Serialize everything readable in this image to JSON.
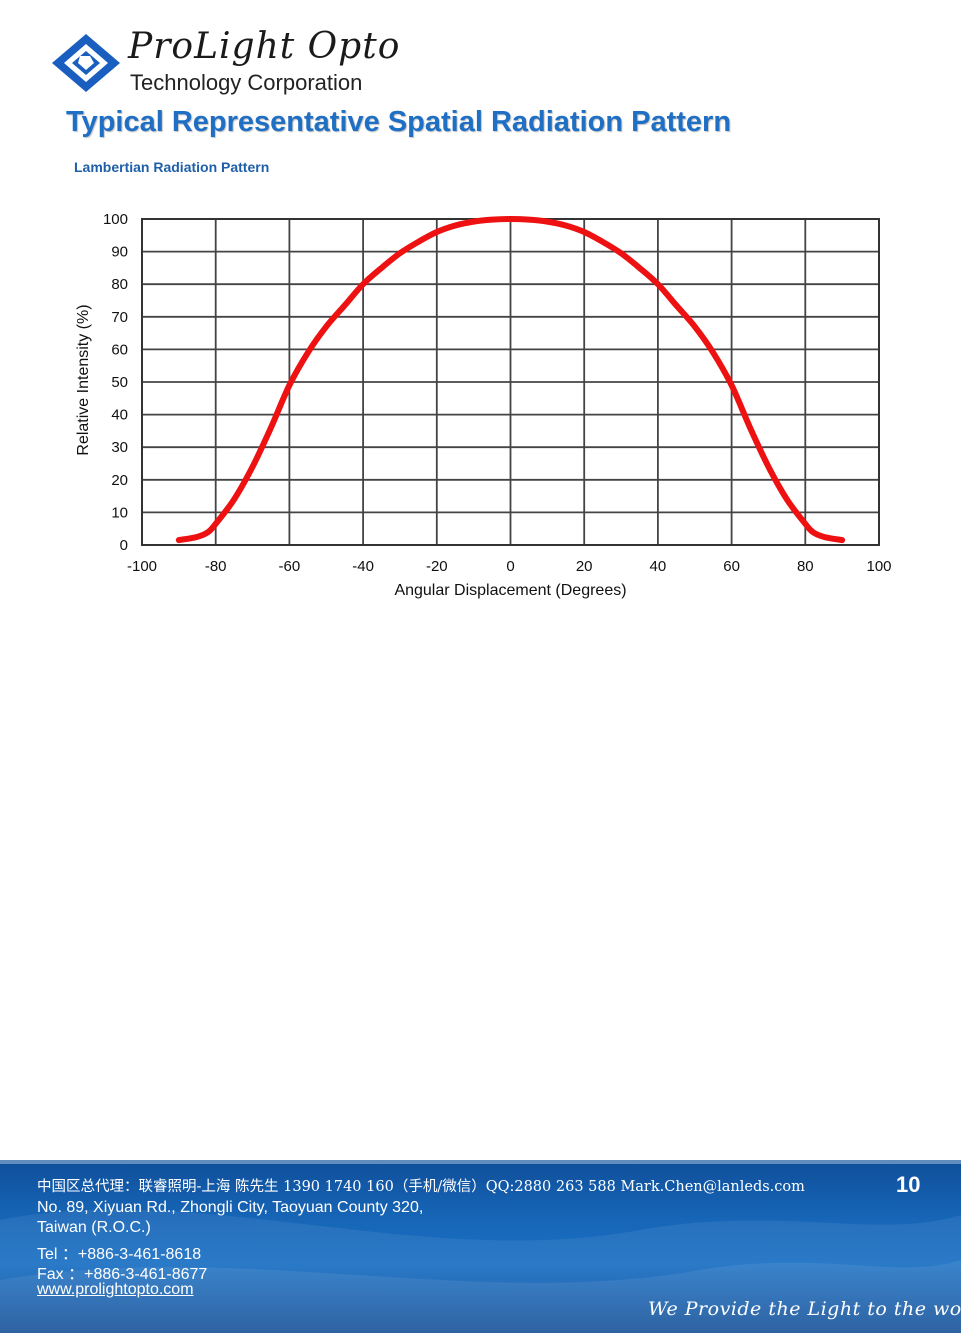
{
  "header": {
    "brand": "ProLight Opto",
    "subtitle": "Technology Corporation",
    "logo_icon": "diamond-logo-icon"
  },
  "page_title": "Typical Representative Spatial Radiation Pattern",
  "chart_heading": "Lambertian Radiation Pattern",
  "chart_data": {
    "type": "line",
    "title": "",
    "xlabel": "Angular Displacement (Degrees)",
    "ylabel": "Relative Intensity (%)",
    "xlim": [
      -100,
      100
    ],
    "ylim": [
      0,
      100
    ],
    "xticks": [
      -100,
      -80,
      -60,
      -40,
      -20,
      0,
      20,
      40,
      60,
      80,
      100
    ],
    "yticks": [
      0,
      10,
      20,
      30,
      40,
      50,
      60,
      70,
      80,
      90,
      100
    ],
    "grid": true,
    "series": [
      {
        "color": "#ee1111",
        "x": [
          -90,
          -85,
          -82,
          -80,
          -75,
          -70,
          -65,
          -60,
          -55,
          -50,
          -45,
          -40,
          -35,
          -30,
          -25,
          -20,
          -15,
          -10,
          -5,
          0,
          5,
          10,
          15,
          20,
          25,
          30,
          35,
          40,
          45,
          50,
          55,
          60,
          65,
          70,
          75,
          80,
          82,
          85,
          90
        ],
        "y": [
          1.5,
          2.5,
          4,
          6.5,
          14,
          24,
          36,
          49,
          59,
          67,
          73.5,
          80,
          85,
          89.5,
          93,
          96,
          98,
          99.2,
          99.8,
          100,
          99.8,
          99.2,
          98,
          96,
          93,
          89.5,
          85,
          80,
          73.5,
          67,
          59,
          49,
          36,
          24,
          14,
          6.5,
          4,
          2.5,
          1.5
        ]
      }
    ]
  },
  "footer": {
    "agent_line": "中国区总代理：联睿照明-上海 陈先生 1390 1740 160（手机/微信）QQ:2880 263 588 Mark.Chen@lanleds.com",
    "address_line1": "No. 89, Xiyuan Rd., Zhongli City, Taoyuan County 320,",
    "address_line2": "Taiwan (R.O.C.)",
    "tel": "Tel ：+886-3-461-8618",
    "fax": "Fax ：+886-3-461-8677",
    "website": "www.prolightopto.com",
    "page_number": "10",
    "slogan": "We Provide the Light to the world"
  },
  "colors": {
    "title_blue": "#1f6fc5",
    "curve_red": "#ee1111",
    "footer_blue": "#1766b8"
  }
}
